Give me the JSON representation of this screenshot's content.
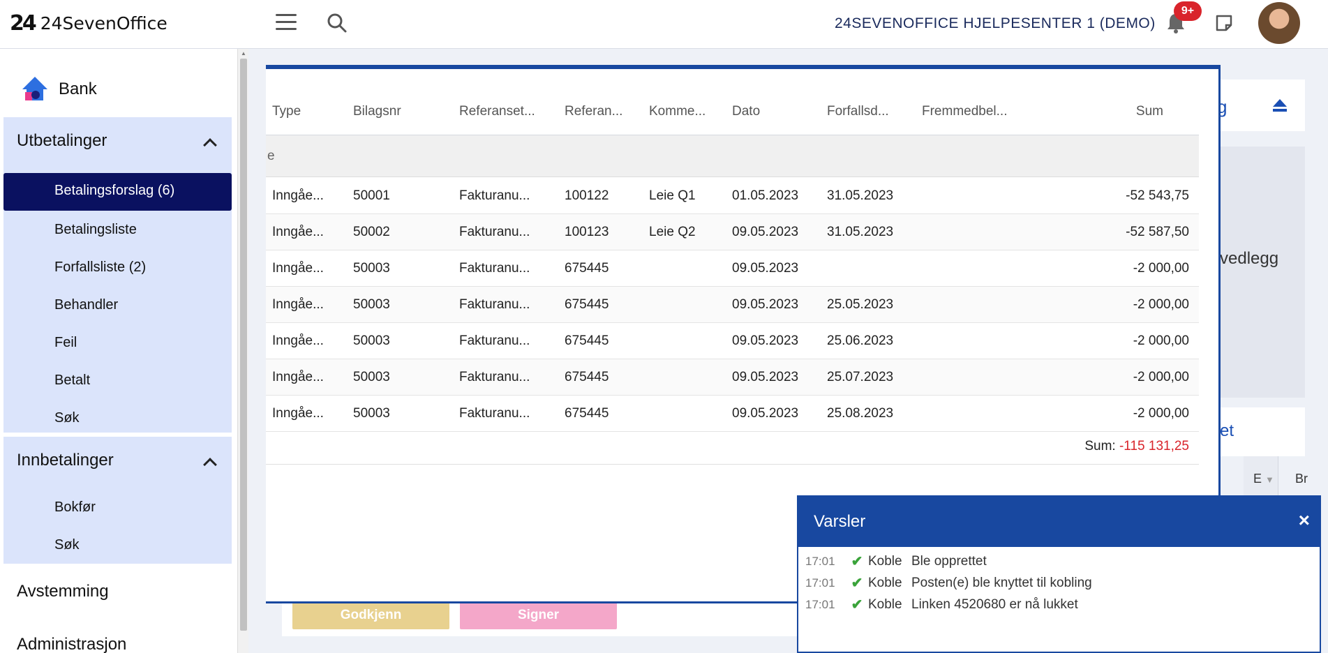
{
  "topbar": {
    "logo_mark": "24",
    "logo_text": "24SevenOffice",
    "company": "24SEVENOFFICE HJELPESENTER 1 (DEMO)",
    "notification_badge": "9+"
  },
  "sidebar": {
    "title": "Bank",
    "utbetalinger": {
      "label": "Utbetalinger",
      "items": [
        {
          "label": "Betalingsforslag (6)"
        },
        {
          "label": "Betalingsliste"
        },
        {
          "label": "Forfallsliste (2)"
        },
        {
          "label": "Behandler"
        },
        {
          "label": "Feil"
        },
        {
          "label": "Betalt"
        },
        {
          "label": "Søk"
        }
      ]
    },
    "innbetalinger": {
      "label": "Innbetalinger",
      "items": [
        {
          "label": "Bokfør"
        },
        {
          "label": "Søk"
        }
      ]
    },
    "avstemming": "Avstemming",
    "administrasjon": "Administrasjon"
  },
  "background": {
    "fragment_g": "g",
    "fragment_vedlegg": "vedlegg",
    "fragment_et": "et",
    "col_e": "E",
    "col_br": "Br",
    "approve_button": "Godkjenn",
    "sign_button": "Signer"
  },
  "table": {
    "headers": {
      "type": "Type",
      "bilagsnr": "Bilagsnr",
      "referansetype": "Referanset...",
      "referanse": "Referan...",
      "kommentar": "Komme...",
      "dato": "Dato",
      "forfallsdato": "Forfallsd...",
      "fremmedbelop": "Fremmedbel...",
      "sum": "Sum"
    },
    "group_label": "e",
    "rows": [
      {
        "type": "Inngåe...",
        "bilagsnr": "50001",
        "reftype": "Fakturanu...",
        "ref": "100122",
        "kommentar": "Leie Q1",
        "dato": "01.05.2023",
        "forfall": "31.05.2023",
        "sum": "-52 543,75"
      },
      {
        "type": "Inngåe...",
        "bilagsnr": "50002",
        "reftype": "Fakturanu...",
        "ref": "100123",
        "kommentar": "Leie Q2",
        "dato": "09.05.2023",
        "forfall": "31.05.2023",
        "sum": "-52 587,50"
      },
      {
        "type": "Inngåe...",
        "bilagsnr": "50003",
        "reftype": "Fakturanu...",
        "ref": "675445",
        "kommentar": "",
        "dato": "09.05.2023",
        "forfall": "",
        "sum": "-2 000,00"
      },
      {
        "type": "Inngåe...",
        "bilagsnr": "50003",
        "reftype": "Fakturanu...",
        "ref": "675445",
        "kommentar": "",
        "dato": "09.05.2023",
        "forfall": "25.05.2023",
        "sum": "-2 000,00"
      },
      {
        "type": "Inngåe...",
        "bilagsnr": "50003",
        "reftype": "Fakturanu...",
        "ref": "675445",
        "kommentar": "",
        "dato": "09.05.2023",
        "forfall": "25.06.2023",
        "sum": "-2 000,00"
      },
      {
        "type": "Inngåe...",
        "bilagsnr": "50003",
        "reftype": "Fakturanu...",
        "ref": "675445",
        "kommentar": "",
        "dato": "09.05.2023",
        "forfall": "25.07.2023",
        "sum": "-2 000,00"
      },
      {
        "type": "Inngåe...",
        "bilagsnr": "50003",
        "reftype": "Fakturanu...",
        "ref": "675445",
        "kommentar": "",
        "dato": "09.05.2023",
        "forfall": "25.08.2023",
        "sum": "-2 000,00"
      }
    ],
    "total_label": "Sum:",
    "total_value": "-115 131,25"
  },
  "notifications": {
    "title": "Varsler",
    "close": "×",
    "items": [
      {
        "time": "17:01",
        "source": "Koble",
        "message": "Ble opprettet"
      },
      {
        "time": "17:01",
        "source": "Koble",
        "message": "Posten(e) ble knyttet til kobling"
      },
      {
        "time": "17:01",
        "source": "Koble",
        "message": "Linken 4520680 er nå lukket"
      }
    ]
  },
  "colors": {
    "primary_blue": "#1848a0",
    "active_nav": "#0a1160",
    "nav_group_bg": "#dbe4fb",
    "negative": "#d9242b",
    "success": "#3aa33a"
  }
}
